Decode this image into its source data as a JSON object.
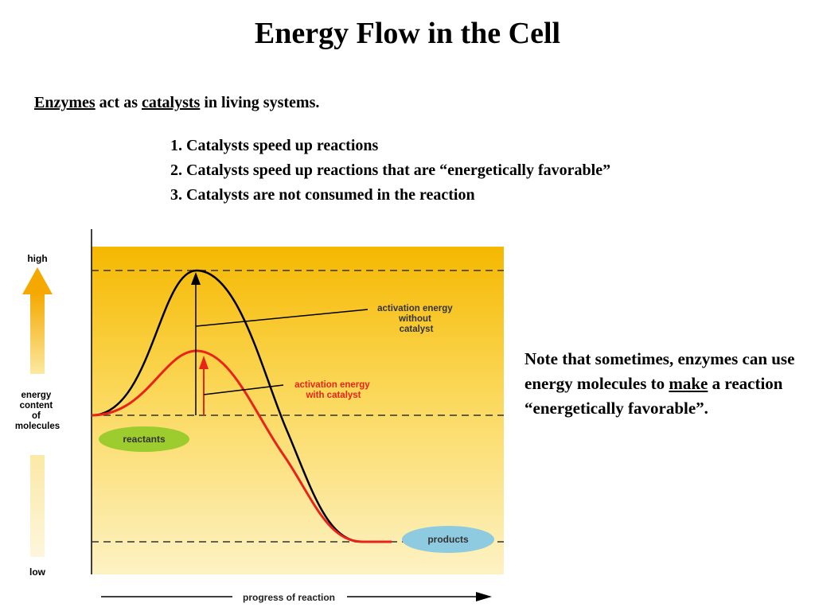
{
  "title": "Energy Flow in the Cell",
  "intro": {
    "word1": "Enzymes",
    "text1": " act as ",
    "word2": "catalysts",
    "text2": " in living systems."
  },
  "points": [
    "1. Catalysts speed up reactions",
    "2. Catalysts speed up reactions that are “energetically favorable”",
    "3.  Catalysts are not consumed in the reaction"
  ],
  "note": {
    "part1": "Note that sometimes, enzymes can use energy molecules to ",
    "underlined": "make",
    "part2": " a reaction “energetically favorable”."
  },
  "diagram": {
    "y_axis": {
      "high": "high",
      "label_lines": [
        "energy",
        "content",
        "of",
        "molecules"
      ],
      "low": "low"
    },
    "x_axis_label": "progress of reaction",
    "labels": {
      "without_catalyst": [
        "activation energy",
        "without",
        "catalyst"
      ],
      "with_catalyst": [
        "activation energy",
        "with catalyst"
      ],
      "reactants": "reactants",
      "products": "products"
    },
    "colors": {
      "background_top": "#f5b800",
      "background_bottom": "#fdf2c4",
      "uncatalyzed_curve": "#000000",
      "catalyzed_curve": "#e8231a",
      "reactants_oval": "#9ccc2e",
      "products_oval": "#8ecbe0",
      "arrow_top": "#f5a800",
      "arrow_bottom": "#fbe9a0"
    }
  }
}
